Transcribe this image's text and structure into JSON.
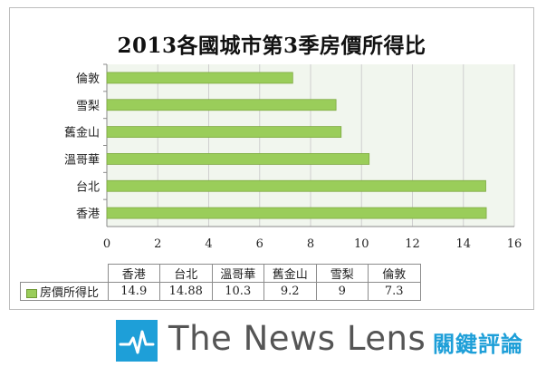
{
  "chart_data": {
    "type": "bar",
    "orientation": "horizontal",
    "title": "2013各國城市第3季房價所得比",
    "categories": [
      "香港",
      "台北",
      "溫哥華",
      "舊金山",
      "雪梨",
      "倫敦"
    ],
    "series": [
      {
        "name": "房價所得比",
        "values": [
          14.9,
          14.88,
          10.3,
          9.2,
          9,
          7.3
        ],
        "color": "#9acd5a"
      }
    ],
    "xlim": [
      0,
      16
    ],
    "xticks": [
      0,
      2,
      4,
      6,
      8,
      10,
      12,
      14,
      16
    ],
    "grid": true,
    "data_table": true
  },
  "logo": {
    "text": "The News Lens",
    "cjk": "關鍵評論"
  }
}
